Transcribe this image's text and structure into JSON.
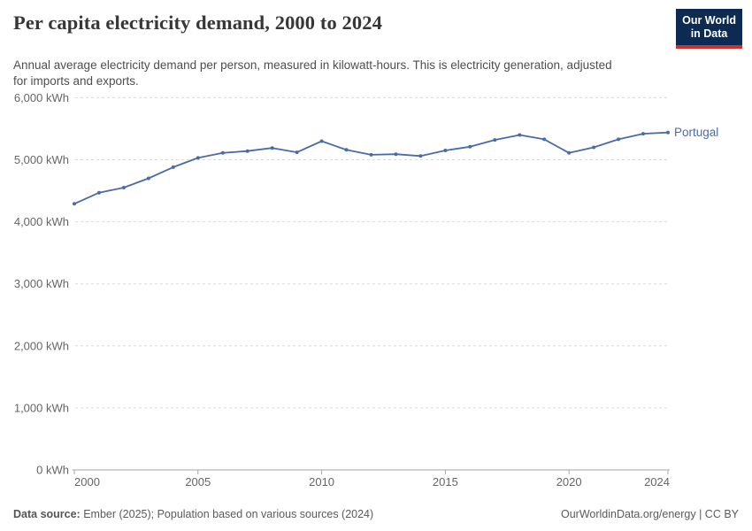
{
  "header": {
    "title": "Per capita electricity demand, 2000 to 2024",
    "subtitle": "Annual average electricity demand per person, measured in kilowatt-hours. This is electricity generation, adjusted for imports and exports.",
    "logo": {
      "line1": "Our World",
      "line2": "in Data",
      "bg_color": "#0d2a52",
      "accent_color": "#cf302b",
      "text_color": "#ffffff"
    }
  },
  "chart_data": {
    "type": "line",
    "title": "Per capita electricity demand, 2000 to 2024",
    "xlabel": "",
    "ylabel": "",
    "unit": "kWh",
    "xlim": [
      2000,
      2024
    ],
    "ylim": [
      0,
      6000
    ],
    "grid": "horizontal-dashed",
    "legend_position": "end-of-line",
    "x_ticks": [
      2000,
      2005,
      2010,
      2015,
      2020,
      2024
    ],
    "y_ticks": [
      {
        "value": 0,
        "label": "0 kWh"
      },
      {
        "value": 1000,
        "label": "1,000 kWh"
      },
      {
        "value": 2000,
        "label": "2,000 kWh"
      },
      {
        "value": 3000,
        "label": "3,000 kWh"
      },
      {
        "value": 4000,
        "label": "4,000 kWh"
      },
      {
        "value": 5000,
        "label": "5,000 kWh"
      },
      {
        "value": 6000,
        "label": "6,000 kWh"
      }
    ],
    "series": [
      {
        "name": "Portugal",
        "color": "#4a6ba8",
        "x": [
          2000,
          2001,
          2002,
          2003,
          2004,
          2005,
          2006,
          2007,
          2008,
          2009,
          2010,
          2011,
          2012,
          2013,
          2014,
          2015,
          2016,
          2017,
          2018,
          2019,
          2020,
          2021,
          2022,
          2023,
          2024
        ],
        "values": [
          4290,
          4470,
          4550,
          4700,
          4880,
          5030,
          5110,
          5140,
          5190,
          5120,
          5300,
          5160,
          5080,
          5090,
          5060,
          5150,
          5210,
          5320,
          5400,
          5330,
          5110,
          5200,
          5330,
          5420,
          5440
        ]
      }
    ],
    "colors": {
      "gridline": "#dcdcdc",
      "axis": "#a5a5a5",
      "tick_label": "#666666"
    }
  },
  "footer": {
    "source_label": "Data source:",
    "source_text": " Ember (2025); Population based on various sources (2024)",
    "credit": "OurWorldinData.org/energy | CC BY"
  }
}
